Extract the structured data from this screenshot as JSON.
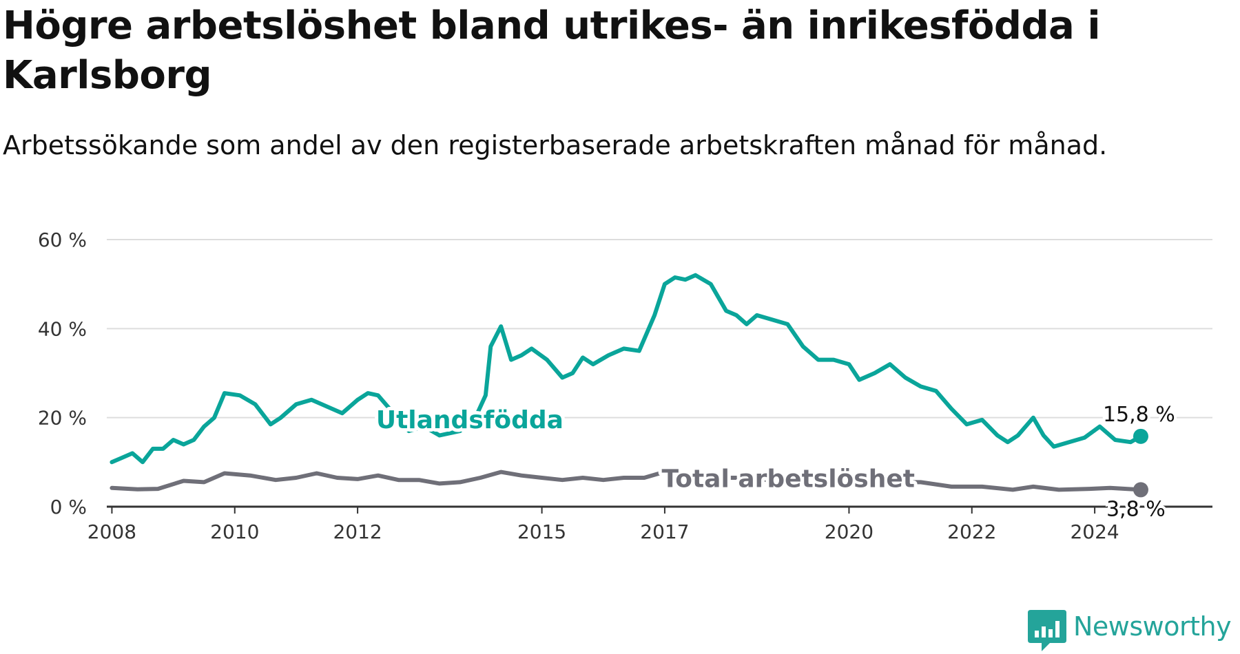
{
  "title": "Högre arbetslöshet bland utrikes- än inrikesfödda i Karlsborg",
  "subtitle": "Arbetssökande som andel av den registerbaserade arbetskraften månad för månad.",
  "brand": "Newsworthy",
  "colors": {
    "foreign": "#0aa59a",
    "total": "#6f6f78",
    "grid": "#dddddd",
    "axis": "#333333",
    "brand": "#24a49a"
  },
  "chart_data": {
    "type": "line",
    "title": "Högre arbetslöshet bland utrikes- än inrikesfödda i Karlsborg",
    "subtitle": "Arbetssökande som andel av den registerbaserade arbetskraften månad för månad.",
    "xlabel": "",
    "ylabel": "",
    "x_range": [
      "2007-12",
      "2025-12"
    ],
    "ylim": [
      0,
      60
    ],
    "y_ticks": [
      0,
      20,
      40,
      60
    ],
    "y_tick_labels": [
      "0 %",
      "20 %",
      "40 %",
      "60 %"
    ],
    "x_ticks": [
      "2008",
      "2010",
      "2012",
      "2015",
      "2017",
      "2020",
      "2022",
      "2024"
    ],
    "grid": "horizontal",
    "legend": "inline labels",
    "series": [
      {
        "name": "Utlandsfödda",
        "end_label": "15,8 %",
        "points": [
          [
            "2008-01",
            10
          ],
          [
            "2008-03",
            11
          ],
          [
            "2008-05",
            12
          ],
          [
            "2008-07",
            10
          ],
          [
            "2008-09",
            13
          ],
          [
            "2008-11",
            13
          ],
          [
            "2009-01",
            15
          ],
          [
            "2009-03",
            14
          ],
          [
            "2009-05",
            15
          ],
          [
            "2009-07",
            18
          ],
          [
            "2009-09",
            20
          ],
          [
            "2009-11",
            25.5
          ],
          [
            "2010-02",
            25
          ],
          [
            "2010-05",
            23
          ],
          [
            "2010-08",
            18.5
          ],
          [
            "2010-10",
            20
          ],
          [
            "2011-01",
            23
          ],
          [
            "2011-04",
            24
          ],
          [
            "2011-06",
            23
          ],
          [
            "2011-08",
            22
          ],
          [
            "2011-10",
            21
          ],
          [
            "2012-01",
            24
          ],
          [
            "2012-03",
            25.5
          ],
          [
            "2012-05",
            25
          ],
          [
            "2012-08",
            21
          ],
          [
            "2012-11",
            17
          ],
          [
            "2013-02",
            18
          ],
          [
            "2013-05",
            16
          ],
          [
            "2013-09",
            17
          ],
          [
            "2013-12",
            20
          ],
          [
            "2014-02",
            25
          ],
          [
            "2014-03",
            36
          ],
          [
            "2014-05",
            40.5
          ],
          [
            "2014-07",
            33
          ],
          [
            "2014-09",
            34
          ],
          [
            "2014-11",
            35.5
          ],
          [
            "2015-02",
            33
          ],
          [
            "2015-05",
            29
          ],
          [
            "2015-07",
            30
          ],
          [
            "2015-09",
            33.5
          ],
          [
            "2015-11",
            32
          ],
          [
            "2016-02",
            34
          ],
          [
            "2016-05",
            35.5
          ],
          [
            "2016-08",
            35
          ],
          [
            "2016-11",
            43
          ],
          [
            "2017-01",
            50
          ],
          [
            "2017-03",
            51.5
          ],
          [
            "2017-05",
            51
          ],
          [
            "2017-07",
            52
          ],
          [
            "2017-10",
            50
          ],
          [
            "2018-01",
            44
          ],
          [
            "2018-03",
            43
          ],
          [
            "2018-05",
            41
          ],
          [
            "2018-07",
            43
          ],
          [
            "2018-10",
            42
          ],
          [
            "2019-01",
            41
          ],
          [
            "2019-04",
            36
          ],
          [
            "2019-07",
            33
          ],
          [
            "2019-10",
            33
          ],
          [
            "2020-01",
            32
          ],
          [
            "2020-03",
            28.5
          ],
          [
            "2020-06",
            30
          ],
          [
            "2020-09",
            32
          ],
          [
            "2020-12",
            29
          ],
          [
            "2021-03",
            27
          ],
          [
            "2021-06",
            26
          ],
          [
            "2021-09",
            22
          ],
          [
            "2021-12",
            18.5
          ],
          [
            "2022-03",
            19.5
          ],
          [
            "2022-06",
            16
          ],
          [
            "2022-08",
            14.5
          ],
          [
            "2022-10",
            16
          ],
          [
            "2023-01",
            20
          ],
          [
            "2023-03",
            16
          ],
          [
            "2023-05",
            13.5
          ],
          [
            "2023-08",
            14.5
          ],
          [
            "2023-11",
            15.5
          ],
          [
            "2024-02",
            18
          ],
          [
            "2024-05",
            15
          ],
          [
            "2024-08",
            14.5
          ],
          [
            "2024-10",
            15.8
          ]
        ]
      },
      {
        "name": "Total arbetslöshet",
        "end_label": "3,8 %",
        "points": [
          [
            "2008-01",
            4.2
          ],
          [
            "2008-06",
            3.9
          ],
          [
            "2008-10",
            4
          ],
          [
            "2009-03",
            5.8
          ],
          [
            "2009-07",
            5.5
          ],
          [
            "2009-11",
            7.5
          ],
          [
            "2010-04",
            7
          ],
          [
            "2010-09",
            6
          ],
          [
            "2011-01",
            6.5
          ],
          [
            "2011-05",
            7.5
          ],
          [
            "2011-09",
            6.5
          ],
          [
            "2012-01",
            6.2
          ],
          [
            "2012-05",
            7
          ],
          [
            "2012-09",
            6
          ],
          [
            "2013-01",
            6
          ],
          [
            "2013-05",
            5.2
          ],
          [
            "2013-09",
            5.5
          ],
          [
            "2014-01",
            6.5
          ],
          [
            "2014-05",
            7.8
          ],
          [
            "2014-09",
            7
          ],
          [
            "2015-01",
            6.5
          ],
          [
            "2015-05",
            6
          ],
          [
            "2015-09",
            6.5
          ],
          [
            "2016-01",
            6
          ],
          [
            "2016-05",
            6.5
          ],
          [
            "2016-09",
            6.5
          ],
          [
            "2016-12",
            7.5
          ],
          [
            "2017-03",
            8
          ],
          [
            "2017-06",
            7
          ],
          [
            "2017-10",
            6.5
          ],
          [
            "2018-03",
            6.5
          ],
          [
            "2018-09",
            6
          ],
          [
            "2019-03",
            5.5
          ],
          [
            "2019-09",
            5.5
          ],
          [
            "2020-03",
            6
          ],
          [
            "2020-09",
            5.5
          ],
          [
            "2021-03",
            5.5
          ],
          [
            "2021-09",
            4.5
          ],
          [
            "2022-03",
            4.5
          ],
          [
            "2022-09",
            3.8
          ],
          [
            "2023-01",
            4.5
          ],
          [
            "2023-06",
            3.8
          ],
          [
            "2023-12",
            4
          ],
          [
            "2024-04",
            4.2
          ],
          [
            "2024-10",
            3.8
          ]
        ]
      }
    ]
  }
}
